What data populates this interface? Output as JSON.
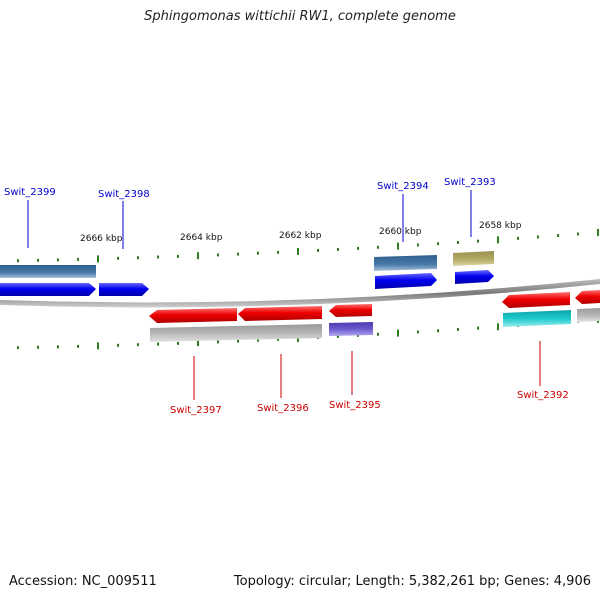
{
  "title": "Sphingomonas wittichii RW1, complete genome",
  "footer": {
    "accession": "Accession: NC_009511",
    "summary": "Topology: circular; Length: 5,382,261 bp; Genes: 4,906"
  },
  "scale_labels": [
    {
      "label": "2666 kbp",
      "kbp": 2666
    },
    {
      "label": "2664 kbp",
      "kbp": 2664
    },
    {
      "label": "2662 kbp",
      "kbp": 2662
    },
    {
      "label": "2660 kbp",
      "kbp": 2660
    },
    {
      "label": "2658 kbp",
      "kbp": 2658
    }
  ],
  "colors": {
    "forward_label": "#0000cc",
    "reverse_label": "#cc0000",
    "tick": "#2e7d1e",
    "cds_blue": "#0000ee",
    "cds_red": "#ee0000",
    "gene_steel": "#4a7aa8",
    "gene_olive": "#b7ad6b",
    "gene_gray": "#b5b5b5",
    "gene_purple": "#6a5acd",
    "gene_cyan": "#1cc9cc",
    "backbone": "#888888"
  },
  "genes": [
    {
      "name": "Swit_2399",
      "strand": "forward"
    },
    {
      "name": "Swit_2398",
      "strand": "forward"
    },
    {
      "name": "Swit_2394",
      "strand": "forward"
    },
    {
      "name": "Swit_2393",
      "strand": "forward"
    },
    {
      "name": "Swit_2397",
      "strand": "reverse"
    },
    {
      "name": "Swit_2396",
      "strand": "reverse"
    },
    {
      "name": "Swit_2395",
      "strand": "reverse"
    },
    {
      "name": "Swit_2392",
      "strand": "reverse"
    }
  ]
}
